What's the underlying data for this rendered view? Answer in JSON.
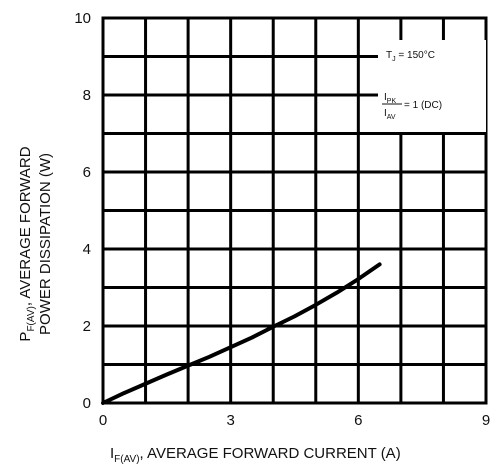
{
  "chart_data": {
    "type": "line",
    "title": "",
    "xlabel_main": "I",
    "xlabel_sub": "F(AV)",
    "xlabel_rest": ", AVERAGE FORWARD CURRENT (A)",
    "ylabel_main": "P",
    "ylabel_sub": "F(AV)",
    "ylabel_rest": ", AVERAGE FORWARD",
    "ylabel_line2": "POWER DISSIPATION (W)",
    "xlim": [
      0,
      9
    ],
    "ylim": [
      0,
      10
    ],
    "x_ticks": [
      {
        "value": 0,
        "label": "0"
      },
      {
        "value": 3,
        "label": "3"
      },
      {
        "value": 6,
        "label": "6"
      },
      {
        "value": 9,
        "label": "9"
      }
    ],
    "y_ticks": [
      {
        "value": 0,
        "label": "0"
      },
      {
        "value": 2,
        "label": "2"
      },
      {
        "value": 4,
        "label": "4"
      },
      {
        "value": 6,
        "label": "6"
      },
      {
        "value": 8,
        "label": "8"
      },
      {
        "value": 10,
        "label": "10"
      }
    ],
    "grid": true,
    "series": [
      {
        "name": "",
        "x": [
          0,
          0.5,
          1,
          1.5,
          2,
          2.5,
          3,
          3.5,
          4,
          4.5,
          5,
          5.5,
          6,
          6.5
        ],
        "y": [
          0,
          0.26,
          0.5,
          0.74,
          0.97,
          1.2,
          1.45,
          1.7,
          1.98,
          2.25,
          2.55,
          2.87,
          3.22,
          3.6
        ]
      }
    ],
    "annotations": {
      "tj_main": "T",
      "tj_sub": "J",
      "tj_rest": " = 150°C",
      "ratio_num_main": "I",
      "ratio_num_sub": "PK",
      "ratio_den_main": "I",
      "ratio_den_sub": "AV",
      "ratio_rest": " = 1 (DC)"
    }
  }
}
